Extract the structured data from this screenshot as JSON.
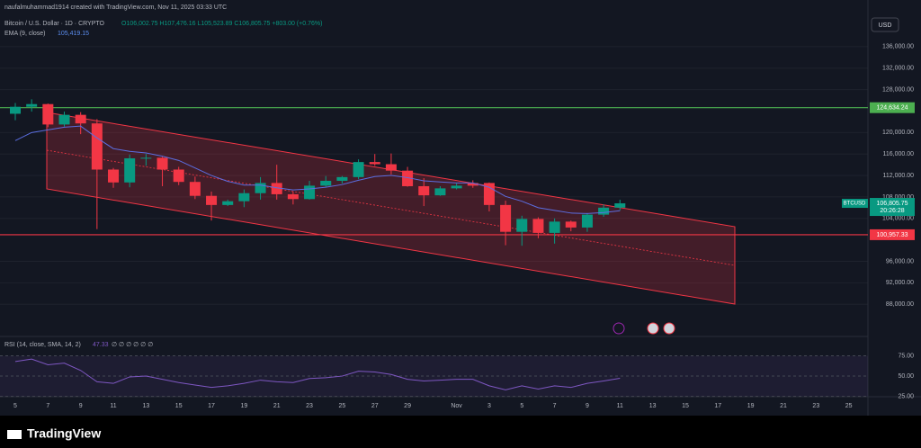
{
  "header": {
    "credit": "naufalmuhammad1914 created with TradingView.com, Nov 11, 2025 03:33 UTC",
    "symbol": "Bitcoin / U.S. Dollar · 1D · CRYPTO",
    "ohlc": "O106,002.75 H107,476.16 L105,523.89 C106,805.75 +803.00 (+0.76%)",
    "ema_label": "EMA (9, close)",
    "ema_value": "105,419.15",
    "currency": "USD",
    "logo": "TradingView"
  },
  "chart_data": {
    "type": "candlestick",
    "grid": true,
    "categories": [
      "5",
      null,
      "7",
      null,
      "9",
      null,
      "11",
      null,
      "13",
      null,
      "15",
      null,
      "17",
      null,
      "19",
      null,
      "21",
      null,
      "23",
      null,
      "25",
      null,
      "27",
      null,
      "29",
      null,
      null,
      "Nov",
      null,
      "3",
      null,
      "5",
      null,
      "7",
      null,
      "9",
      null,
      "11"
    ],
    "future_categories": [
      "13",
      "15",
      "17",
      "19",
      "21",
      "23",
      "25"
    ],
    "open": [
      123500,
      124800,
      125300,
      121500,
      123300,
      121700,
      113100,
      110700,
      115200,
      115300,
      113100,
      110800,
      108200,
      106500,
      107200,
      108700,
      110600,
      108500,
      107600,
      110100,
      111000,
      111700,
      114500,
      114100,
      112900,
      110000,
      108300,
      109600,
      110600,
      110600,
      106500,
      101500,
      103900,
      101300,
      103400,
      102300,
      104700,
      106002.75
    ],
    "high": [
      125500,
      126200,
      125400,
      123900,
      123800,
      122500,
      113400,
      115900,
      116000,
      115500,
      113600,
      111800,
      109000,
      107500,
      109400,
      111700,
      114000,
      109000,
      111000,
      111900,
      111900,
      115000,
      116000,
      116100,
      113600,
      111500,
      110000,
      110500,
      111100,
      110700,
      107300,
      104500,
      104200,
      104000,
      103600,
      105000,
      106600,
      107476.16
    ],
    "low": [
      122300,
      123900,
      121000,
      121100,
      119700,
      102000,
      109700,
      109800,
      113800,
      110000,
      110200,
      107600,
      103600,
      106300,
      106100,
      107500,
      107500,
      106600,
      107500,
      109900,
      110500,
      111300,
      113800,
      112200,
      109900,
      106300,
      108200,
      109400,
      109700,
      105300,
      99000,
      98900,
      100300,
      99300,
      101600,
      101500,
      104300,
      105523.89
    ],
    "close": [
      124800,
      125300,
      121500,
      123300,
      121700,
      113100,
      110700,
      115200,
      115300,
      113100,
      110800,
      108200,
      106500,
      107200,
      108700,
      110600,
      108500,
      107600,
      110100,
      111000,
      111700,
      114500,
      114100,
      112900,
      110000,
      108300,
      109600,
      110100,
      110100,
      106500,
      101500,
      103900,
      101300,
      103400,
      102300,
      104700,
      106000,
      106805.75
    ],
    "up_color": "#089981",
    "down_color": "#f23645",
    "ema": {
      "color": "#5b6ee1",
      "values": [
        118500,
        120000,
        120500,
        121000,
        121200,
        119000,
        117000,
        116500,
        116200,
        115600,
        114800,
        113400,
        112000,
        110900,
        110200,
        110200,
        109700,
        109300,
        109500,
        109800,
        110300,
        111100,
        111800,
        112000,
        111600,
        111000,
        110800,
        110600,
        110600,
        109800,
        108100,
        107200,
        106000,
        105500,
        105000,
        104900,
        105100,
        105419.15
      ]
    },
    "ylim": [
      82000,
      144700
    ],
    "yticks": [
      {
        "value": 88000,
        "label": "88,000.00"
      },
      {
        "value": 92000,
        "label": "92,000.00"
      },
      {
        "value": 96000,
        "label": "96,000.00"
      },
      {
        "value": 104000,
        "label": "104,000.00"
      },
      {
        "value": 108000,
        "label": "108,000.00"
      },
      {
        "value": 112000,
        "label": "112,000.00"
      },
      {
        "value": 116000,
        "label": "116,000.00"
      },
      {
        "value": 120000,
        "label": "120,000.00"
      },
      {
        "value": 128000,
        "label": "128,000.00"
      },
      {
        "value": 132000,
        "label": "132,000.00"
      },
      {
        "value": 136000,
        "label": "136,000.00"
      }
    ],
    "hlines": [
      {
        "value": 124634.24,
        "label": "124,634.24",
        "color": "#4caf50"
      },
      {
        "value": 100957.33,
        "label": "100,957.33",
        "color": "#f23645"
      }
    ],
    "last_price": {
      "symbol": "BTCUSD",
      "label": "106,805.75",
      "countdown": "20:26:28",
      "color": "#089981"
    },
    "rsi": {
      "title": "RSI (14, close, SMA, 14, 2)",
      "value_label": "47.33",
      "extra": "∅ ∅ ∅ ∅ ∅ ∅",
      "color": "#7e57c2",
      "values": [
        68,
        71,
        64,
        66,
        57,
        43,
        41,
        49,
        50,
        46,
        42,
        39,
        36,
        38,
        41,
        45,
        43,
        42,
        47,
        48,
        50,
        56,
        55,
        52,
        46,
        44,
        45,
        46,
        46,
        38,
        33,
        38,
        34,
        38,
        36,
        41,
        44,
        47.33
      ],
      "ylim": [
        19,
        100
      ],
      "yticks": [
        {
          "value": 25,
          "label": "25.00"
        },
        {
          "value": 50,
          "label": "50.00"
        },
        {
          "value": 75,
          "label": "75.00"
        }
      ]
    }
  }
}
